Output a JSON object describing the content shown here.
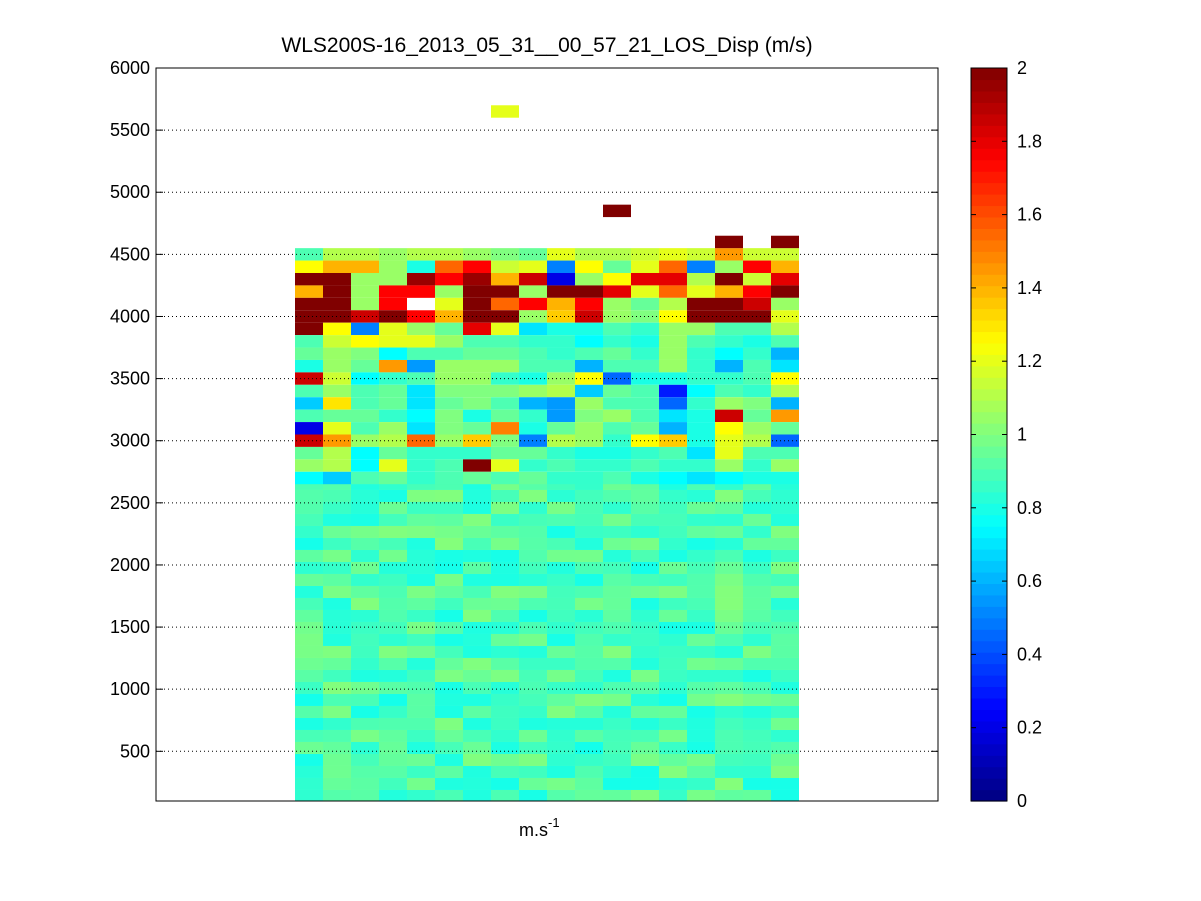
{
  "chart_data": {
    "type": "heatmap",
    "title": "WLS200S-16_2013_05_31__00_57_21_LOS_Disp (m/s)",
    "xlabel_base": "m.s",
    "xlabel_exp": "-1",
    "ylabel": "",
    "ylim": [
      100,
      6000
    ],
    "yticks": [
      500,
      1000,
      1500,
      2000,
      2500,
      3000,
      3500,
      4000,
      4500,
      5000,
      5500,
      6000
    ],
    "ytick_labels": [
      "500",
      "1000",
      "1500",
      "2000",
      "2500",
      "3000",
      "3500",
      "4000",
      "4500",
      "5000",
      "5500",
      "6000"
    ],
    "colorbar": {
      "colormap": "jet",
      "clim": [
        0,
        2
      ],
      "ticks": [
        0,
        0.2,
        0.4,
        0.6,
        0.8,
        1,
        1.2,
        1.4,
        1.6,
        1.8,
        2
      ],
      "tick_labels": [
        "0",
        "0.2",
        "0.4",
        "0.6",
        "0.8",
        "1",
        "1.2",
        "1.4",
        "1.6",
        "1.8",
        "2"
      ]
    },
    "grid": "horizontal dotted",
    "n_columns": 18,
    "row_altitudes": [
      4500,
      4400,
      4300,
      4200,
      4100,
      4000,
      3900,
      3800,
      3700,
      3600,
      3500,
      3400,
      3300,
      3200,
      3100,
      3000,
      2900,
      2800,
      2700
    ],
    "values": [
      [
        0.9,
        1.1,
        1.1,
        1.05,
        1.1,
        1.1,
        1.05,
        1.0,
        0.95,
        1.2,
        1.1,
        1.1,
        1.15,
        1.2,
        1.15,
        1.45,
        1.15,
        1.15
      ],
      [
        1.25,
        1.4,
        1.4,
        1.05,
        0.8,
        1.55,
        1.75,
        1.15,
        1.2,
        0.5,
        1.25,
        0.95,
        1.2,
        1.55,
        0.5,
        1.05,
        1.75,
        1.4
      ],
      [
        2.0,
        2.0,
        1.05,
        1.05,
        1.95,
        1.75,
        1.95,
        1.4,
        1.85,
        0.2,
        1.05,
        1.25,
        1.8,
        1.8,
        1.1,
        2.0,
        1.15,
        1.8
      ],
      [
        1.4,
        2.0,
        1.05,
        1.75,
        1.75,
        1.05,
        2.0,
        2.0,
        1.05,
        2.0,
        2.0,
        1.8,
        1.2,
        1.55,
        1.2,
        1.4,
        1.75,
        2.0
      ],
      [
        2.0,
        2.0,
        1.05,
        1.75,
        null,
        1.2,
        2.0,
        1.55,
        1.75,
        1.4,
        1.75,
        1.05,
        0.95,
        1.1,
        2.0,
        2.0,
        1.85,
        1.05
      ],
      [
        2.0,
        2.0,
        1.85,
        2.0,
        1.75,
        1.4,
        2.0,
        2.0,
        1.05,
        1.35,
        1.85,
        1.05,
        1.0,
        1.25,
        2.0,
        2.0,
        2.0,
        1.2
      ],
      [
        2.0,
        1.25,
        0.5,
        1.2,
        1.05,
        0.95,
        1.8,
        1.2,
        0.7,
        0.8,
        0.8,
        0.9,
        0.85,
        1.05,
        1.05,
        0.9,
        0.9,
        1.1
      ],
      [
        0.9,
        1.15,
        1.25,
        1.2,
        1.2,
        1.05,
        0.9,
        0.9,
        0.85,
        0.85,
        0.75,
        0.85,
        0.8,
        1.05,
        0.9,
        0.85,
        0.8,
        0.9
      ],
      [
        0.95,
        1.05,
        1.0,
        0.75,
        0.9,
        0.9,
        0.95,
        0.95,
        0.9,
        0.85,
        0.9,
        0.95,
        0.85,
        1.05,
        0.85,
        0.75,
        0.85,
        0.6
      ],
      [
        0.8,
        1.05,
        0.95,
        1.45,
        0.55,
        1.05,
        1.05,
        1.05,
        0.9,
        0.9,
        0.6,
        0.9,
        0.9,
        1.05,
        0.85,
        0.6,
        0.9,
        0.7
      ],
      [
        1.85,
        1.15,
        0.75,
        0.85,
        0.9,
        1.05,
        1.05,
        0.85,
        0.8,
        1.05,
        1.25,
        0.45,
        0.8,
        0.8,
        0.85,
        0.85,
        0.9,
        1.25
      ],
      [
        0.9,
        1.05,
        0.9,
        0.95,
        0.7,
        1.0,
        1.0,
        1.0,
        1.05,
        1.1,
        0.65,
        0.95,
        0.9,
        0.3,
        0.75,
        0.9,
        0.85,
        1.1
      ],
      [
        0.65,
        1.3,
        0.9,
        0.95,
        0.7,
        0.95,
        1.0,
        0.9,
        0.6,
        0.55,
        1.05,
        0.9,
        0.9,
        0.45,
        0.85,
        1.05,
        1.0,
        0.6
      ],
      [
        0.9,
        0.95,
        0.95,
        0.85,
        0.75,
        1.0,
        0.8,
        0.95,
        0.85,
        0.55,
        1.0,
        1.05,
        0.9,
        0.7,
        0.8,
        1.85,
        0.95,
        1.45
      ],
      [
        0.2,
        1.2,
        0.9,
        1.05,
        0.7,
        1.0,
        0.95,
        1.5,
        0.8,
        0.95,
        1.05,
        0.9,
        0.95,
        0.6,
        0.8,
        1.25,
        1.05,
        0.95
      ],
      [
        1.85,
        1.45,
        1.05,
        1.1,
        1.55,
        1.05,
        1.35,
        1.0,
        0.5,
        1.1,
        1.05,
        0.85,
        1.25,
        1.35,
        0.8,
        1.2,
        1.1,
        0.45
      ],
      [
        0.95,
        1.1,
        0.75,
        0.95,
        0.85,
        0.85,
        0.85,
        0.95,
        0.95,
        0.85,
        0.8,
        0.8,
        0.85,
        0.9,
        0.7,
        1.2,
        0.9,
        0.9
      ],
      [
        1.05,
        1.1,
        0.75,
        1.2,
        0.85,
        0.9,
        2.0,
        1.2,
        0.85,
        0.9,
        0.85,
        0.85,
        0.9,
        0.85,
        0.85,
        1.05,
        0.85,
        1.05
      ],
      [
        0.75,
        0.65,
        0.9,
        0.95,
        0.85,
        0.9,
        0.95,
        0.9,
        0.95,
        0.85,
        0.85,
        0.9,
        0.8,
        0.75,
        0.7,
        0.75,
        0.8,
        0.8
      ]
    ],
    "lower_block": {
      "y_range": [
        100,
        2700
      ],
      "typical_value": 0.9
    },
    "isolated_cells": [
      {
        "column": 7,
        "altitude": 5650,
        "value": 1.2
      },
      {
        "column": 11,
        "altitude": 4850,
        "value": 2.0
      },
      {
        "column": 15,
        "altitude": 4600,
        "value": 2.0
      },
      {
        "column": 17,
        "altitude": 4600,
        "value": 2.0
      }
    ]
  }
}
